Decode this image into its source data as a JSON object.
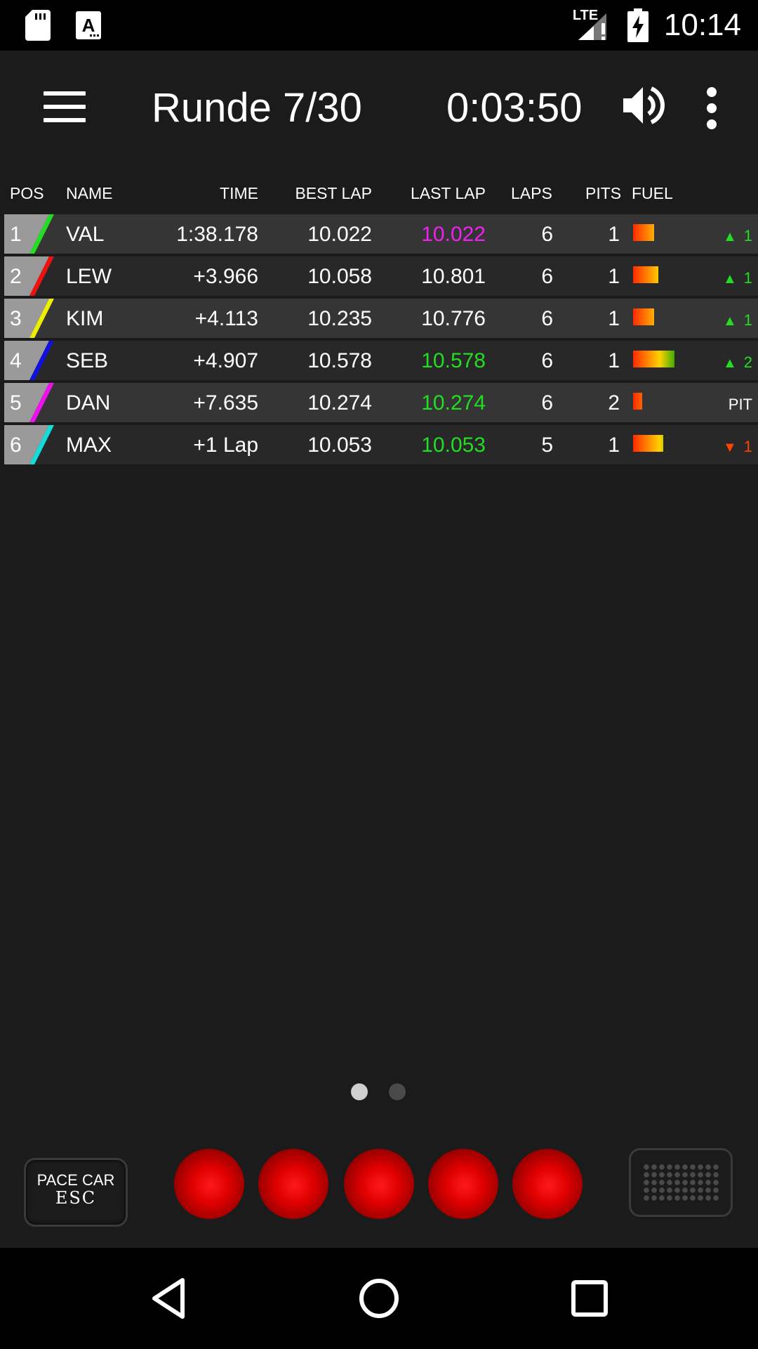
{
  "status_bar": {
    "time": "10:14",
    "network_label": "LTE",
    "icons": [
      "sd-card-icon",
      "keyboard-a-icon",
      "signal-lte-icon",
      "battery-charging-icon"
    ]
  },
  "app_bar": {
    "lap": "Runde 7/30",
    "timer": "0:03:50",
    "icons": [
      "menu-icon",
      "volume-icon",
      "overflow-menu-icon"
    ]
  },
  "columns": {
    "pos": "POS",
    "name": "NAME",
    "time": "TIME",
    "best": "BEST LAP",
    "last": "LAST LAP",
    "laps": "LAPS",
    "pits": "PITS",
    "fuel": "FUEL"
  },
  "colors": {
    "background": "#1b1b1b",
    "row_dark": "#282828",
    "row_light": "#353535",
    "fastest_lap": "#ee22ee",
    "personal_best": "#22dd22",
    "position_up": "#22dd22",
    "position_down": "#ff4400"
  },
  "rows": [
    {
      "pos": "1",
      "name": "VAL",
      "time": "1:38.178",
      "best": "10.022",
      "last": "10.022",
      "last_color": "#ee22ee",
      "laps": "6",
      "pits": "1",
      "fuel": 0.45,
      "car_color": "#22dd22",
      "change_arrow": "▲",
      "change": "1",
      "change_color": "#22dd22"
    },
    {
      "pos": "2",
      "name": "LEW",
      "time": "+3.966",
      "best": "10.058",
      "last": "10.801",
      "last_color": "#ffffff",
      "laps": "6",
      "pits": "1",
      "fuel": 0.55,
      "car_color": "#ee1111",
      "change_arrow": "▲",
      "change": "1",
      "change_color": "#22dd22"
    },
    {
      "pos": "3",
      "name": "KIM",
      "time": "+4.113",
      "best": "10.235",
      "last": "10.776",
      "last_color": "#ffffff",
      "laps": "6",
      "pits": "1",
      "fuel": 0.45,
      "car_color": "#eeee00",
      "change_arrow": "▲",
      "change": "1",
      "change_color": "#22dd22"
    },
    {
      "pos": "4",
      "name": "SEB",
      "time": "+4.907",
      "best": "10.578",
      "last": "10.578",
      "last_color": "#22dd22",
      "laps": "6",
      "pits": "1",
      "fuel": 0.9,
      "car_color": "#1111dd",
      "change_arrow": "▲",
      "change": "2",
      "change_color": "#22dd22"
    },
    {
      "pos": "5",
      "name": "DAN",
      "time": "+7.635",
      "best": "10.274",
      "last": "10.274",
      "last_color": "#22dd22",
      "laps": "6",
      "pits": "2",
      "fuel": 0.2,
      "car_color": "#ee11ee",
      "change_arrow": "",
      "change": "PIT",
      "change_color": "#ffffff"
    },
    {
      "pos": "6",
      "name": "MAX",
      "time": "+1 Lap",
      "best": "10.053",
      "last": "10.053",
      "last_color": "#22dd22",
      "laps": "5",
      "pits": "1",
      "fuel": 0.65,
      "car_color": "#11dddd",
      "change_arrow": "▼",
      "change": "1",
      "change_color": "#ff4400"
    }
  ],
  "pager": {
    "pages": 2,
    "active": 0
  },
  "controls": {
    "pace_car_label": "PACE CAR",
    "esc_label": "ESC",
    "start_lights": 5,
    "light_color": "#ff0000",
    "icons": [
      "keypad-icon"
    ]
  },
  "nav_bar": {
    "icons": [
      "back-icon",
      "home-icon",
      "recents-icon"
    ]
  }
}
